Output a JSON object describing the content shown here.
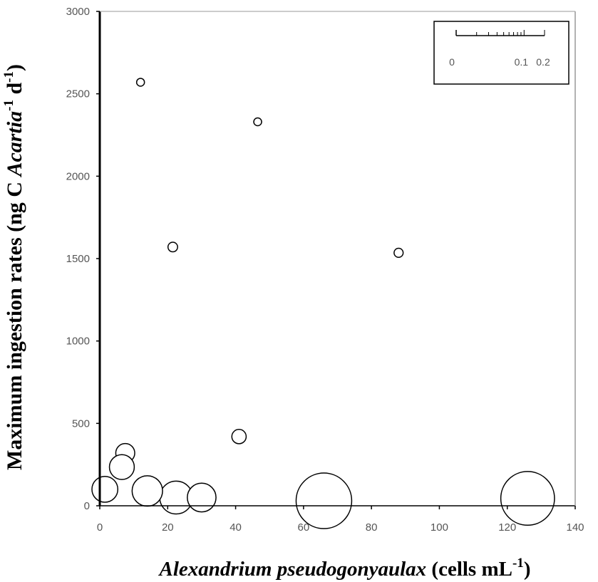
{
  "chart_data": {
    "type": "scatter",
    "subtype": "bubble",
    "xlabel": {
      "italic": "Alexandrium pseudogonyaulax",
      "normal": " (cells mL",
      "sup": "-1",
      "close": ")"
    },
    "ylabel": {
      "normal": "Maximum ingestion rates (ng C ",
      "italic": "Acartia",
      "sup1": "-1",
      "mid": " d",
      "sup2": "-1",
      "close": ")"
    },
    "xlim": [
      0,
      140
    ],
    "ylim": [
      0,
      3000
    ],
    "xticks": [
      "0",
      "20",
      "40",
      "60",
      "80",
      "100",
      "120",
      "140"
    ],
    "yticks": [
      "0",
      "500",
      "1000",
      "1500",
      "2000",
      "2500",
      "3000"
    ],
    "grid": false,
    "marker_fill": "#ffffff",
    "marker_stroke": "#000000",
    "size_legend": {
      "placement": "top-right",
      "tick_labels": [
        "0",
        "0.1",
        "0.2"
      ]
    },
    "points": [
      {
        "x": 12.0,
        "y": 2570,
        "size": 0.006
      },
      {
        "x": 46.5,
        "y": 2330,
        "size": 0.006
      },
      {
        "x": 21.5,
        "y": 1570,
        "size": 0.009
      },
      {
        "x": 88.0,
        "y": 1535,
        "size": 0.008
      },
      {
        "x": 41.0,
        "y": 420,
        "size": 0.02
      },
      {
        "x": 7.5,
        "y": 320,
        "size": 0.035
      },
      {
        "x": 6.5,
        "y": 235,
        "size": 0.06
      },
      {
        "x": 1.5,
        "y": 100,
        "size": 0.065
      },
      {
        "x": 22.5,
        "y": 50,
        "size": 0.105
      },
      {
        "x": 14.0,
        "y": 90,
        "size": 0.09
      },
      {
        "x": 30.0,
        "y": 50,
        "size": 0.08
      },
      {
        "x": 66.0,
        "y": 30,
        "size": 0.3
      },
      {
        "x": 126.0,
        "y": 45,
        "size": 0.28
      }
    ]
  }
}
